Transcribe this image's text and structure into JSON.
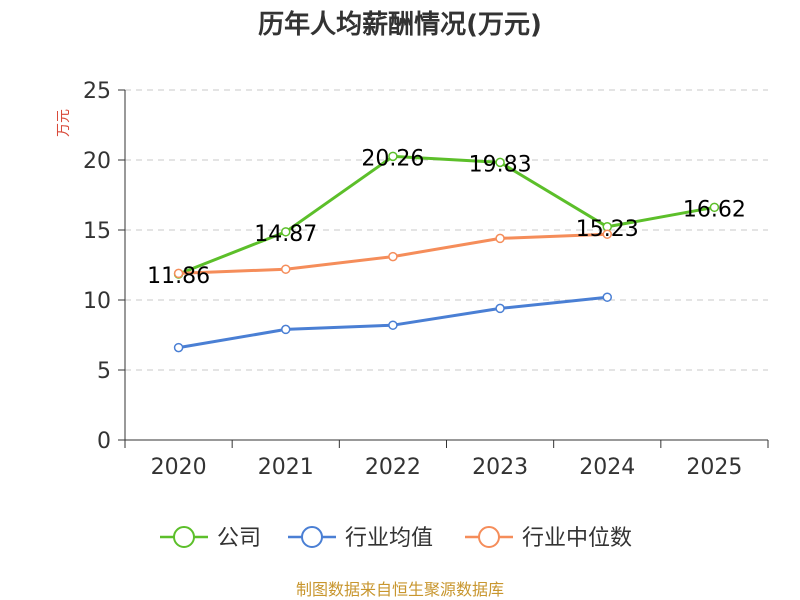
{
  "chart_data": {
    "type": "line",
    "title": "历年人均薪酬情况(万元)",
    "ylabel": "万元",
    "xlabel": "",
    "categories": [
      "2020",
      "2021",
      "2022",
      "2023",
      "2024",
      "2025"
    ],
    "ylim": [
      0,
      25
    ],
    "yticks": [
      "0",
      "5",
      "10",
      "15",
      "20",
      "25"
    ],
    "grid": true,
    "legend_position": "bottom",
    "series": [
      {
        "name": "公司",
        "color": "#5cbf2a",
        "values": [
          11.86,
          14.87,
          20.26,
          19.83,
          15.23,
          16.62
        ],
        "labels": [
          "11.86",
          "14.87",
          "20.26",
          "19.83",
          "15.23",
          "16.62"
        ]
      },
      {
        "name": "行业均值",
        "color": "#4a7fd4",
        "values": [
          6.6,
          7.9,
          8.2,
          9.4,
          10.2,
          null
        ],
        "labels": []
      },
      {
        "name": "行业中位数",
        "color": "#f58d5a",
        "values": [
          11.9,
          12.2,
          13.1,
          14.4,
          14.7,
          null
        ],
        "labels": []
      }
    ]
  },
  "footer": {
    "source": "制图数据来自恒生聚源数据库",
    "source_color": "#c8962e",
    "ylabel_color": "#d94a3a"
  }
}
